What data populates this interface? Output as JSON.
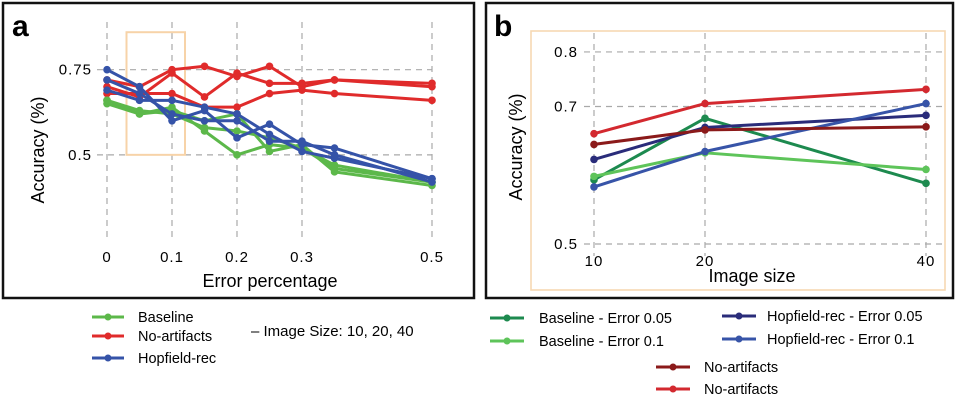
{
  "chart_data": [
    {
      "panel": "a",
      "type": "line",
      "xlabel": "Error percentage",
      "ylabel": "Accuracy (%)",
      "xlim": [
        0,
        0.5
      ],
      "ylim": [
        0.25,
        0.89
      ],
      "xticks": [
        "0",
        "0.1",
        "0.2",
        "0.3",
        "0.5"
      ],
      "xtick_values": [
        0,
        0.1,
        0.2,
        0.3,
        0.5
      ],
      "yticks": [
        "0.5",
        "0.75"
      ],
      "ytick_values": [
        0.5,
        0.75
      ],
      "x": [
        0,
        0.05,
        0.1,
        0.15,
        0.2,
        0.25,
        0.3,
        0.35,
        0.5
      ],
      "grid": true,
      "highlight_box": {
        "x": [
          0.03,
          0.12
        ],
        "y": [
          0.5,
          0.86
        ],
        "color": "#f7d3a8"
      },
      "series": [
        {
          "group": "Baseline",
          "color": "#5cb84a",
          "values": [
            0.66,
            0.62,
            0.64,
            0.57,
            0.5,
            0.53,
            0.52,
            0.46,
            0.42
          ]
        },
        {
          "group": "Baseline",
          "color": "#5cb84a",
          "values": [
            0.65,
            0.62,
            0.63,
            0.6,
            0.62,
            0.51,
            0.53,
            0.45,
            0.41
          ]
        },
        {
          "group": "Baseline",
          "color": "#5cb84a",
          "values": [
            0.66,
            0.63,
            0.62,
            0.58,
            0.57,
            0.55,
            0.52,
            0.47,
            0.42
          ]
        },
        {
          "group": "No-artifacts",
          "color": "#e02b2b",
          "values": [
            0.72,
            0.7,
            0.75,
            0.76,
            0.73,
            0.76,
            0.7,
            0.72,
            0.71
          ]
        },
        {
          "group": "No-artifacts",
          "color": "#e02b2b",
          "values": [
            0.7,
            0.67,
            0.74,
            0.67,
            0.74,
            0.71,
            0.71,
            0.72,
            0.7
          ]
        },
        {
          "group": "No-artifacts",
          "color": "#e02b2b",
          "values": [
            0.68,
            0.68,
            0.68,
            0.64,
            0.64,
            0.68,
            0.69,
            0.68,
            0.66
          ]
        },
        {
          "group": "Hopfield-rec",
          "color": "#3553a8",
          "values": [
            0.75,
            0.7,
            0.6,
            0.63,
            0.55,
            0.59,
            0.53,
            0.52,
            0.43
          ]
        },
        {
          "group": "Hopfield-rec",
          "color": "#3553a8",
          "values": [
            0.69,
            0.66,
            0.66,
            0.64,
            0.62,
            0.56,
            0.51,
            0.49,
            0.43
          ]
        },
        {
          "group": "Hopfield-rec",
          "color": "#3553a8",
          "values": [
            0.72,
            0.68,
            0.62,
            0.6,
            0.6,
            0.54,
            0.54,
            0.5,
            0.42
          ]
        }
      ]
    },
    {
      "panel": "b",
      "type": "line",
      "xlabel": "Image size",
      "ylabel": "Accuracy (%)",
      "x": [
        10,
        20,
        40
      ],
      "xticks": [
        "10",
        "20",
        "40"
      ],
      "yticks": [
        "0.5",
        "0.7",
        "0.8"
      ],
      "ytick_values": [
        0.5,
        0.7,
        0.8
      ],
      "ylim": [
        0.5,
        0.84
      ],
      "y_scale": "log",
      "grid": true,
      "series": [
        {
          "name": "Baseline - Error 0.05",
          "color": "#1d8a4f",
          "values": [
            0.585,
            0.68,
            0.58
          ]
        },
        {
          "name": "Baseline - Error 0.1",
          "color": "#5ec45a",
          "values": [
            0.59,
            0.625,
            0.6
          ]
        },
        {
          "name": "Hopfield-rec - Error 0.05",
          "color": "#2a2c7a",
          "values": [
            0.615,
            0.665,
            0.685
          ]
        },
        {
          "name": "Hopfield-rec - Error 0.1",
          "color": "#3754a8",
          "values": [
            0.575,
            0.627,
            0.705
          ]
        },
        {
          "name": "No-artifacts",
          "color": "#8b1a1a",
          "values": [
            0.638,
            0.661,
            0.666
          ]
        },
        {
          "name": "No-artifacts",
          "color": "#d3292f",
          "values": [
            0.655,
            0.705,
            0.73
          ]
        }
      ]
    }
  ],
  "panel_labels": {
    "a": "a",
    "b": "b"
  },
  "legend_a": {
    "items": [
      {
        "label": "Baseline",
        "color": "#5cb84a"
      },
      {
        "label": "No-artifacts",
        "color": "#e02b2b"
      },
      {
        "label": "Hopfield-rec",
        "color": "#3553a8"
      }
    ],
    "note": "– Image Size: 10, 20, 40"
  },
  "legend_b": {
    "items": [
      {
        "label": "Baseline - Error 0.05",
        "color": "#1d8a4f"
      },
      {
        "label": "Hopfield-rec - Error 0.05",
        "color": "#2a2c7a"
      },
      {
        "label": "Baseline - Error 0.1",
        "color": "#5ec45a"
      },
      {
        "label": "Hopfield-rec - Error 0.1",
        "color": "#3754a8"
      },
      {
        "label": "No-artifacts",
        "color": "#8b1a1a"
      },
      {
        "label": "No-artifacts",
        "color": "#d3292f"
      }
    ]
  }
}
